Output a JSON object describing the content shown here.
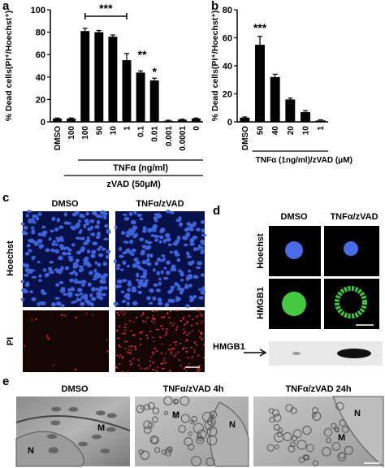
{
  "chart_data": [
    {
      "type": "bar",
      "panel": "a",
      "ylabel": "% Dead cells(PI⁺/Hoechst⁺)",
      "categories": [
        "DMSO",
        "100",
        "100",
        "50",
        "10",
        "1",
        "0.1",
        "0.01",
        "0.001",
        "0.0001",
        "0"
      ],
      "values": [
        3,
        3,
        81,
        80,
        76,
        55,
        44,
        37,
        1,
        2,
        3
      ],
      "errors": [
        0.5,
        0.5,
        2.5,
        1.5,
        1.5,
        6,
        1.5,
        2,
        0.5,
        0.5,
        0.5
      ],
      "color": "#000000",
      "ylim": [
        0,
        100
      ],
      "yticks": [
        0,
        20,
        40,
        60,
        80,
        100
      ],
      "annotations": [
        "***",
        "**",
        "*"
      ],
      "group_labels": [
        "TNFα (ng/ml)",
        "zVAD (50μM)"
      ]
    },
    {
      "type": "bar",
      "panel": "b",
      "ylabel": "% Dead cells(PI⁺/Hoechst⁺)",
      "categories": [
        "DMSO",
        "50",
        "40",
        "20",
        "10",
        "1"
      ],
      "values": [
        3,
        55,
        32,
        16,
        7,
        1
      ],
      "errors": [
        0.5,
        6,
        2,
        1,
        1,
        0.5
      ],
      "color": "#000000",
      "ylim": [
        0,
        80
      ],
      "yticks": [
        0,
        20,
        40,
        60,
        80
      ],
      "annotations": [
        "***"
      ],
      "xlabel": "TNFα (1ng/ml)/zVAD (μM)"
    }
  ],
  "panel_c": {
    "label": "c",
    "columns": [
      "DMSO",
      "TNFα/zVAD"
    ],
    "rows": [
      "Hoechst",
      "PI"
    ]
  },
  "panel_d": {
    "label": "d",
    "columns": [
      "DMSO",
      "TNFα/zVAD"
    ],
    "rows": [
      "Hoechst",
      "HMGB1"
    ],
    "blot_label": "HMGB1"
  },
  "panel_e": {
    "label": "e",
    "columns": [
      "DMSO",
      "TNFα/zVAD 4h",
      "TNFα/zVAD 24h"
    ],
    "marks": [
      "N",
      "M"
    ]
  }
}
